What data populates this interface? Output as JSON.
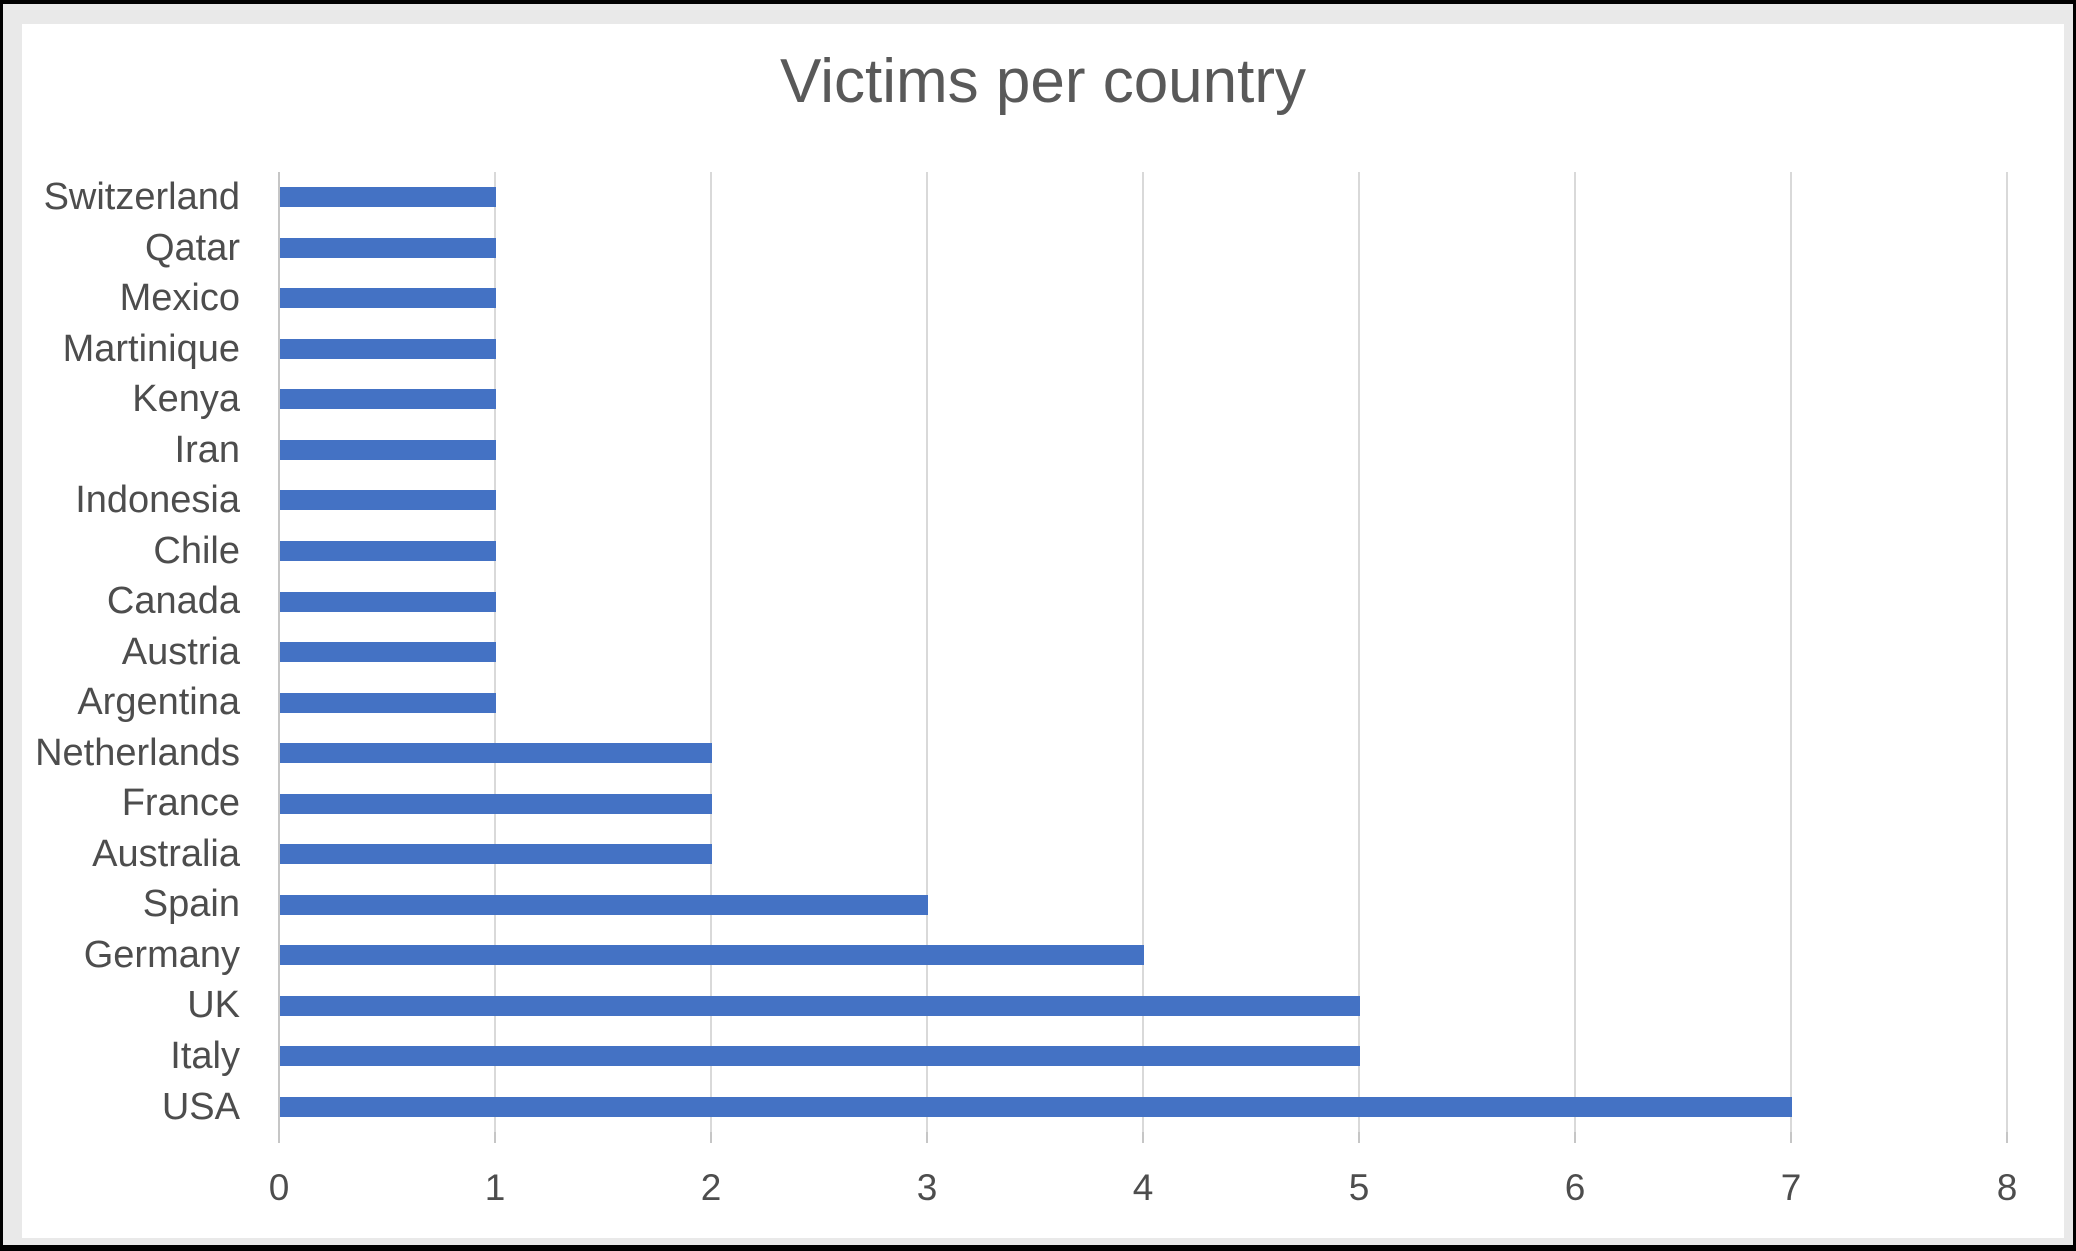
{
  "window": {
    "frame_color": "#000000",
    "mat_color": "#e9e9e9",
    "card_color": "#ffffff"
  },
  "chart_data": {
    "type": "bar",
    "orientation": "horizontal",
    "title": "Victims per country",
    "categories": [
      "Switzerland",
      "Qatar",
      "Mexico",
      "Martinique",
      "Kenya",
      "Iran",
      "Indonesia",
      "Chile",
      "Canada",
      "Austria",
      "Argentina",
      "Netherlands",
      "France",
      "Australia",
      "Spain",
      "Germany",
      "UK",
      "Italy",
      "USA"
    ],
    "values": [
      1,
      1,
      1,
      1,
      1,
      1,
      1,
      1,
      1,
      1,
      1,
      2,
      2,
      2,
      3,
      4,
      5,
      5,
      7
    ],
    "xlabel": "",
    "ylabel": "",
    "xlim": [
      0,
      8
    ],
    "x_ticks": [
      "0",
      "1",
      "2",
      "3",
      "4",
      "5",
      "6",
      "7",
      "8"
    ],
    "grid": true,
    "legend": false,
    "colors": {
      "bar": "#4472C4",
      "gridline": "#D9D9D9",
      "axis_line": "#C6C6C6",
      "title_text": "#595959",
      "axis_text": "#4d4d4d"
    }
  }
}
